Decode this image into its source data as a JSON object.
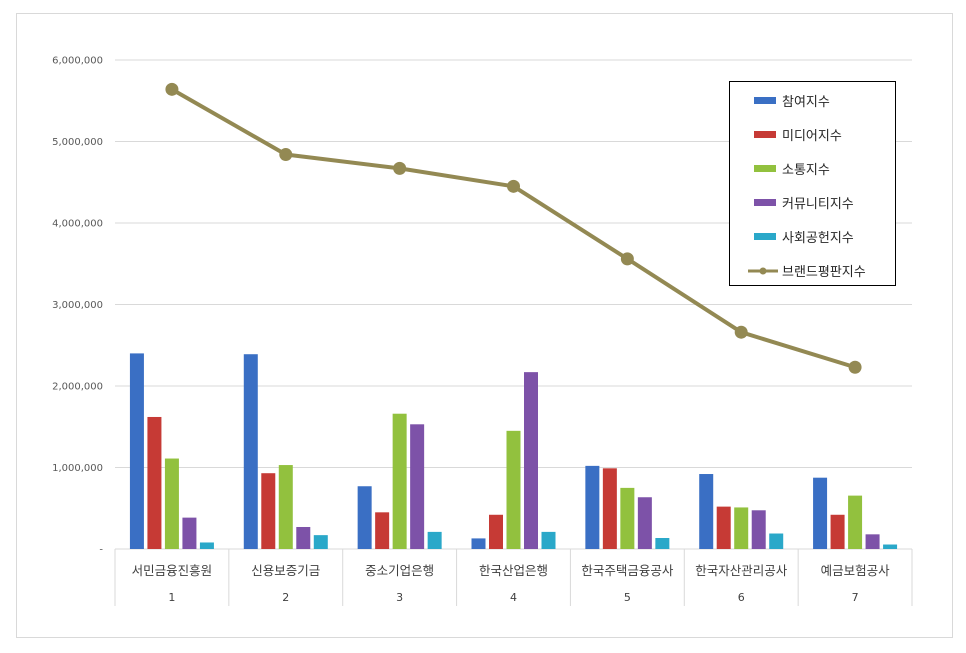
{
  "chart_data": {
    "type": "bar",
    "categories": [
      "서민금융진흥원",
      "신용보증기금",
      "중소기업은행",
      "한국산업은행",
      "한국주택금융공사",
      "한국자산관리공사",
      "예금보험공사"
    ],
    "ranks": [
      "1",
      "2",
      "3",
      "4",
      "5",
      "6",
      "7"
    ],
    "ylim": [
      0,
      6000000
    ],
    "yticks": [
      "-",
      "1,000,000",
      "2,000,000",
      "3,000,000",
      "4,000,000",
      "5,000,000",
      "6,000,000"
    ],
    "grid": true,
    "legend_position": "top-right",
    "series": [
      {
        "name": "참여지수",
        "kind": "bar",
        "color": "#3a6fc4",
        "values": [
          2400000,
          2390000,
          770000,
          130000,
          1020000,
          920000,
          875000
        ]
      },
      {
        "name": "미디어지수",
        "kind": "bar",
        "color": "#c63a35",
        "values": [
          1620000,
          930000,
          450000,
          420000,
          990000,
          520000,
          420000
        ]
      },
      {
        "name": "소통지수",
        "kind": "bar",
        "color": "#92c13e",
        "values": [
          1110000,
          1030000,
          1660000,
          1450000,
          750000,
          510000,
          655000
        ]
      },
      {
        "name": "커뮤니티지수",
        "kind": "bar",
        "color": "#7d52a8",
        "values": [
          385000,
          270000,
          1530000,
          2170000,
          635000,
          475000,
          180000
        ]
      },
      {
        "name": "사회공헌지수",
        "kind": "bar",
        "color": "#2aa8c9",
        "values": [
          80000,
          170000,
          210000,
          210000,
          135000,
          190000,
          55000
        ]
      },
      {
        "name": "브랜드평판지수",
        "kind": "line",
        "color": "#938953",
        "values": [
          5640000,
          4840000,
          4670000,
          4450000,
          3560000,
          2660000,
          2230000
        ]
      }
    ]
  }
}
